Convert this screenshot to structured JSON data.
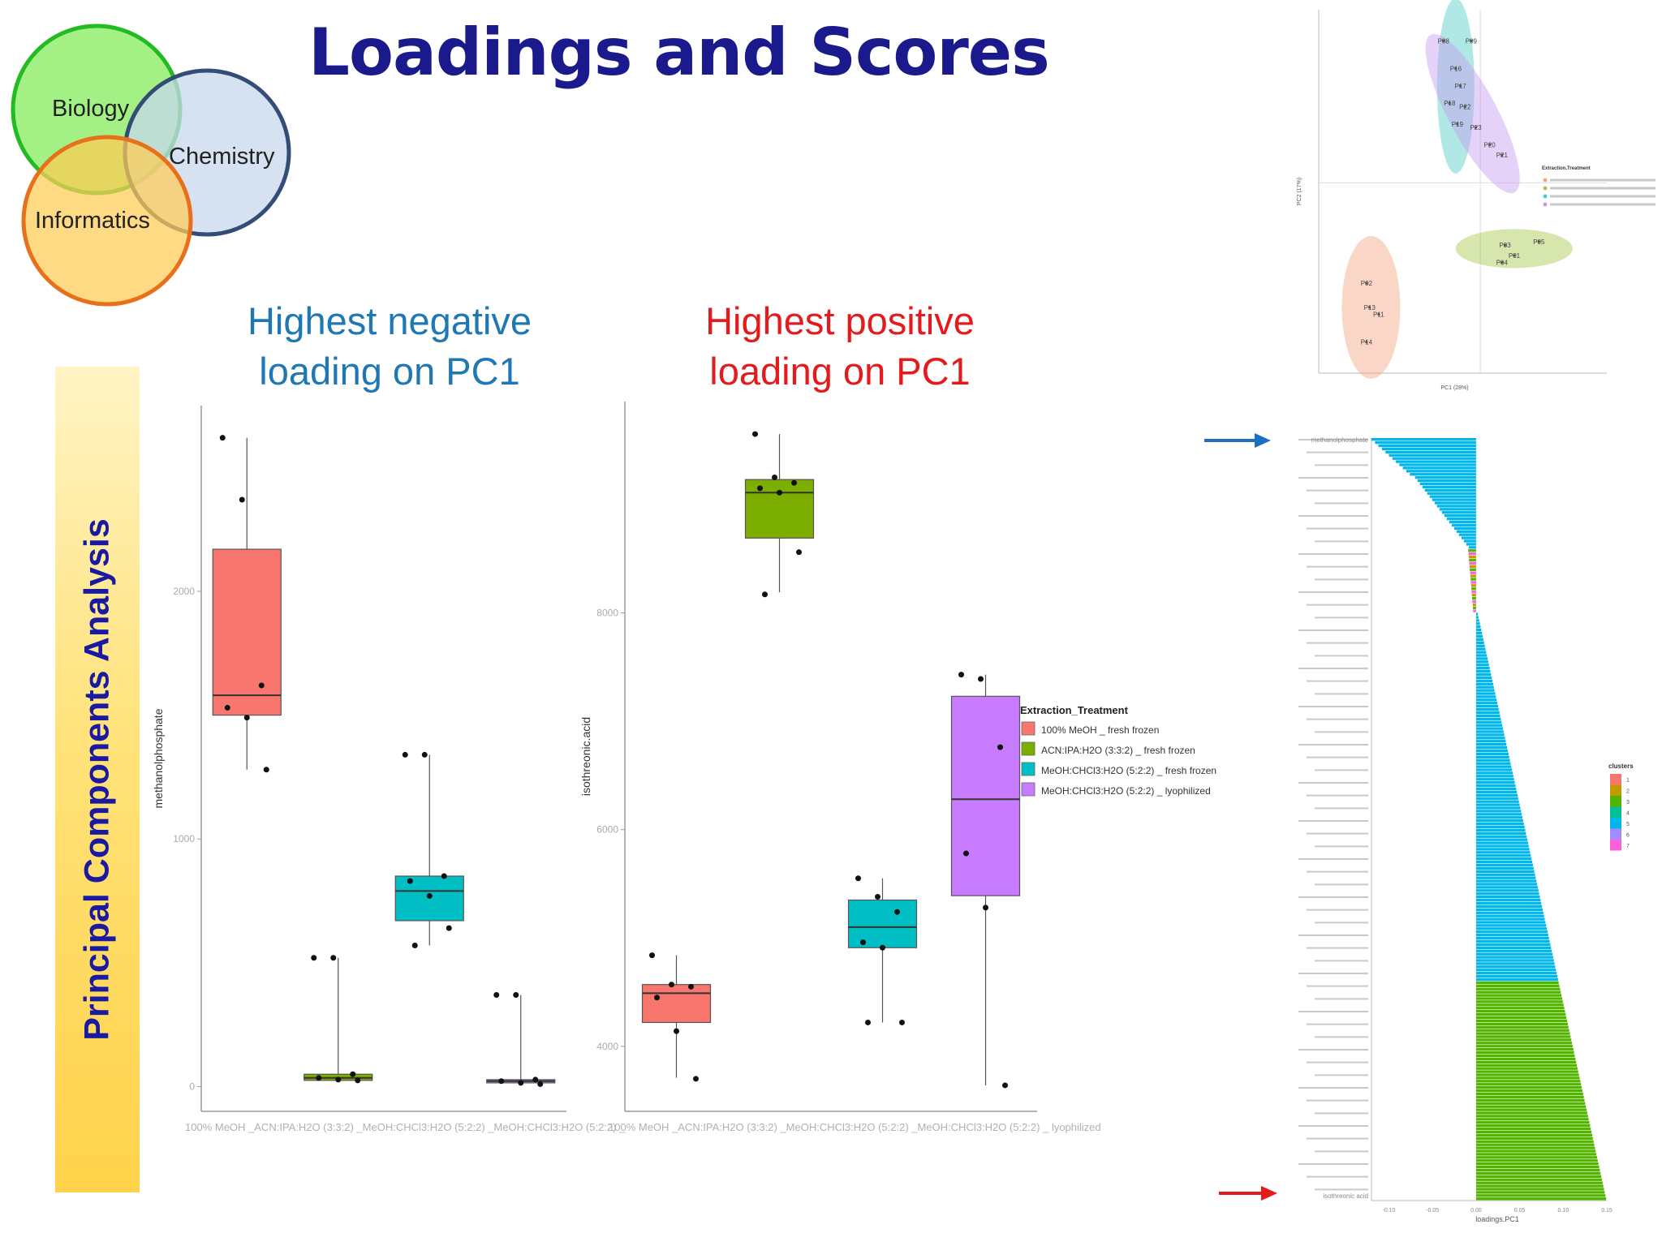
{
  "slide": {
    "title": "Loadings and Scores",
    "header_negative": [
      "Highest negative",
      "loading on PC1"
    ],
    "header_positive": [
      "Highest positive",
      "loading on PC1"
    ],
    "side_label": "Principal Components Analysis"
  },
  "venn": {
    "labels": [
      "Biology",
      "Chemistry",
      "Informatics"
    ],
    "colors": [
      "#99ee77",
      "#c8d8ee",
      "#ffcc55"
    ],
    "strokes": [
      "#22bb22",
      "#334d77",
      "#e8701a"
    ]
  },
  "arrows": {
    "top_color": "#1f6fc0",
    "bottom_color": "#e41a1c"
  },
  "chart_data": [
    {
      "type": "box",
      "ylabel": "methanolphosphate",
      "categories": [
        "100% MeOH _ fresh frozen",
        "ACN:IPA:H2O (3:3:2) _ fresh frozen",
        "MeOH:CHCl3:H2O (5:2:2) _ fresh frozen",
        "MeOH:CHCl3:H2O (5:2:2) _ lyophilized"
      ],
      "tick_labels": [
        "100% MeOH _ACN:IPA:H2O (3:3:2) _MeOH:CHCl3:H2O (5:2:2) _MeOH:CHCl3:H2O (5:2:2) _"
      ],
      "colors": [
        "#f8766d",
        "#7cae00",
        "#00bfc4",
        "#c77cff"
      ],
      "yticks": [
        0,
        1000,
        2000
      ],
      "ylim": [
        -100,
        2750
      ],
      "boxes": [
        {
          "q1": 1500,
          "median": 1580,
          "q3": 2170,
          "low": 1280,
          "high": 2620
        },
        {
          "q1": 25,
          "median": 35,
          "q3": 50,
          "low": 20,
          "high": 520
        },
        {
          "q1": 670,
          "median": 790,
          "q3": 850,
          "low": 570,
          "high": 1340
        },
        {
          "q1": 15,
          "median": 22,
          "q3": 28,
          "low": 10,
          "high": 370
        }
      ],
      "points": [
        [
          2620,
          2370,
          1620,
          1530,
          1490,
          1280
        ],
        [
          520,
          520,
          50,
          35,
          28,
          25
        ],
        [
          1340,
          1340,
          850,
          830,
          770,
          640,
          570
        ],
        [
          370,
          370,
          28,
          22,
          15,
          10
        ]
      ]
    },
    {
      "type": "box",
      "ylabel": "isothreonic.acid",
      "categories": [
        "100% MeOH _ fresh frozen",
        "ACN:IPA:H2O (3:3:2) _ fresh frozen",
        "MeOH:CHCl3:H2O (5:2:2) _ fresh frozen",
        "MeOH:CHCl3:H2O (5:2:2) _ lyophilized"
      ],
      "tick_labels": [
        "100% MeOH _ACN:IPA:H2O (3:3:2) _MeOH:CHCl3:H2O (5:2:2) _MeOH:CHCl3:H2O (5:2:2) _ lyophilized"
      ],
      "colors": [
        "#f8766d",
        "#7cae00",
        "#00bfc4",
        "#c77cff"
      ],
      "yticks": [
        4000,
        6000,
        8000
      ],
      "ylim": [
        3400,
        9950
      ],
      "boxes": [
        {
          "q1": 4220,
          "median": 4490,
          "q3": 4570,
          "low": 3710,
          "high": 4840
        },
        {
          "q1": 8690,
          "median": 9110,
          "q3": 9230,
          "low": 8190,
          "high": 9650
        },
        {
          "q1": 4910,
          "median": 5100,
          "q3": 5350,
          "low": 4220,
          "high": 5550
        },
        {
          "q1": 5390,
          "median": 6280,
          "q3": 7230,
          "low": 3640,
          "high": 7430
        }
      ],
      "points": [
        [
          4840,
          4570,
          4550,
          4450,
          4140,
          3700
        ],
        [
          9650,
          9250,
          9200,
          9150,
          9110,
          8560,
          8170
        ],
        [
          5550,
          5380,
          5240,
          4960,
          4910,
          4220,
          4220
        ],
        [
          7430,
          7390,
          6760,
          5780,
          5280,
          3640
        ]
      ]
    },
    {
      "type": "scatter",
      "xlabel": "PC1 (28%)",
      "ylabel": "PC2 (17%)",
      "legend_title": "Extraction.Treatment",
      "legend_colors": [
        "#f4a582",
        "#a6c84a",
        "#4ecdc4",
        "#c59bf0"
      ],
      "groups": [
        {
          "color": "#f4a582",
          "points": [
            [
              "P02",
              -7.4,
              -2.9
            ],
            [
              "P13",
              -7.2,
              -3.6
            ],
            [
              "P11",
              -6.6,
              -3.8
            ],
            [
              "P14",
              -7.4,
              -4.6
            ]
          ]
        },
        {
          "color": "#a6c84a",
          "points": [
            [
              "P03",
              1.6,
              -1.8
            ],
            [
              "P04",
              1.4,
              -2.3
            ],
            [
              "P01",
              2.2,
              -2.1
            ],
            [
              "P05",
              3.8,
              -1.7
            ]
          ]
        },
        {
          "color": "#4ecdc4",
          "points": [
            [
              "P08",
              -2.4,
              4.1
            ],
            [
              "P09",
              -0.6,
              4.1
            ],
            [
              "P16",
              -1.6,
              3.3
            ],
            [
              "P17",
              -1.3,
              2.8
            ],
            [
              "P18",
              -2.0,
              2.3
            ],
            [
              "P19",
              -1.5,
              1.7
            ]
          ]
        },
        {
          "color": "#c59bf0",
          "points": [
            [
              "P22",
              -1.0,
              2.2
            ],
            [
              "P23",
              -0.3,
              1.6
            ],
            [
              "P20",
              0.6,
              1.1
            ],
            [
              "P21",
              1.4,
              0.8
            ]
          ]
        }
      ]
    },
    {
      "type": "bar",
      "xlabel": "loadings.PC1",
      "legend_title": "clusters",
      "legend_entries": [
        "1",
        "2",
        "3",
        "4",
        "5",
        "6",
        "7"
      ],
      "legend_colors": [
        "#f8766d",
        "#c49a00",
        "#53b400",
        "#00c094",
        "#00b6eb",
        "#a58aff",
        "#fb61d7"
      ],
      "xticks": [
        "-0.10",
        "-0.05",
        "0.00",
        "0.05",
        "0.10",
        "0.15"
      ],
      "xlim": [
        -0.12,
        0.15
      ],
      "first_label": "methanolphosphate",
      "last_label": "isothreonic acid",
      "n_bars": 240
    }
  ]
}
